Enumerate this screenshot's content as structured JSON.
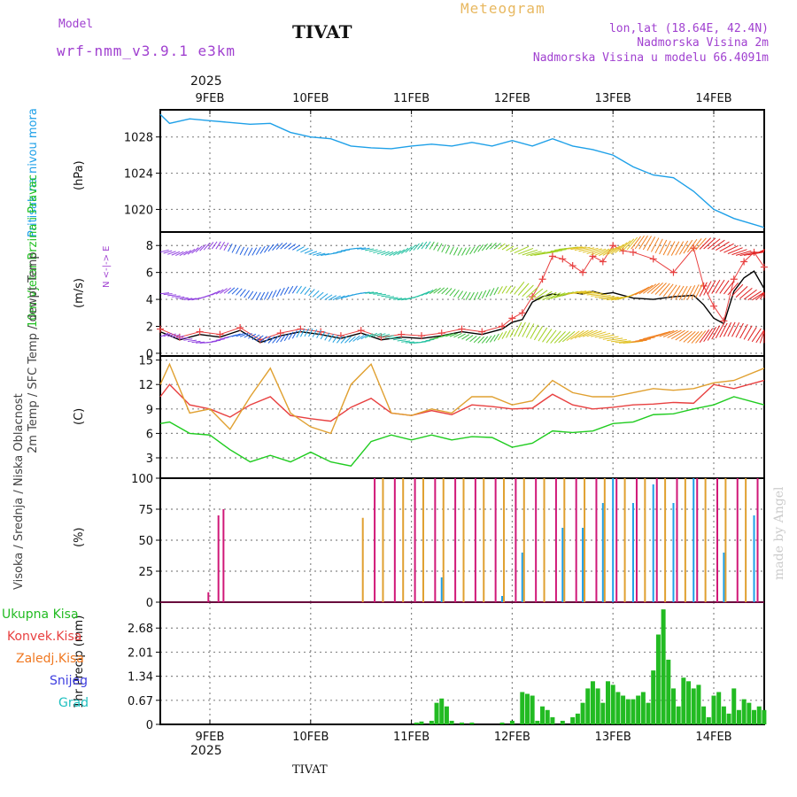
{
  "header": {
    "model_label": "Model",
    "model_name": "wrf-nmm_v3.9.1 e3km",
    "station": "TIVAT",
    "meteogram": "Meteogram",
    "lonlat": "lon,lat (18.64E, 42.4N)",
    "altitude": "Nadmorska Visina 2m",
    "model_altitude": "Nadmorska Visina u modelu 66.4091m",
    "year_top": "2025",
    "year_bottom": "2025",
    "footer_station": "TIVAT",
    "watermark": "made by Angel"
  },
  "colors": {
    "pressure": "#1ea0e8",
    "wind": "#20c020",
    "temp": "#e84040",
    "sfc": "#e0a030",
    "dewpt": "#20cc20",
    "high_cloud": "#1ea0e8",
    "mid_cloud": "#e0a030",
    "low_cloud": "#d01878",
    "precip": "#22bb22",
    "conv": "#e84040",
    "frozen": "#f07820",
    "snow": "#4040e0",
    "hail": "#20c0c0",
    "purple": "#a040d0"
  },
  "axis_ticks": {
    "dates": [
      "9FEB",
      "10FEB",
      "11FEB",
      "12FEB",
      "13FEB",
      "14FEB"
    ]
  },
  "chart_data": [
    {
      "type": "line",
      "title": "Pritisak na nivou mora",
      "ylabel": "(hPa)",
      "yticks": [
        1020,
        1024,
        1028
      ],
      "ylim": [
        1017.5,
        1031
      ],
      "x_days": [
        8.5,
        8.6,
        8.8,
        9.0,
        9.2,
        9.4,
        9.6,
        9.8,
        10.0,
        10.2,
        10.4,
        10.6,
        10.8,
        11.0,
        11.2,
        11.4,
        11.6,
        11.8,
        12.0,
        12.2,
        12.4,
        12.6,
        12.8,
        13.0,
        13.2,
        13.4,
        13.6,
        13.8,
        14.0,
        14.2,
        14.5
      ],
      "values": [
        1030.5,
        1029.5,
        1030.0,
        1029.8,
        1029.6,
        1029.4,
        1029.5,
        1028.5,
        1028.0,
        1027.8,
        1027.0,
        1026.8,
        1026.7,
        1027.0,
        1027.2,
        1027.0,
        1027.4,
        1027.0,
        1027.6,
        1027.0,
        1027.8,
        1027.0,
        1026.6,
        1026.0,
        1024.7,
        1023.8,
        1023.5,
        1022.0,
        1020.0,
        1019.0,
        1018.0
      ]
    },
    {
      "type": "line",
      "title": "10m Vjetar Brzina i Pravac",
      "ylabel": "(m/s)",
      "direction_legend": "N <-|-> E",
      "yticks": [
        0,
        2,
        4,
        6,
        8
      ],
      "ylim": [
        -0.2,
        9
      ],
      "x_days": [
        8.5,
        8.7,
        8.9,
        9.1,
        9.3,
        9.5,
        9.7,
        9.9,
        10.1,
        10.3,
        10.5,
        10.7,
        10.9,
        11.1,
        11.3,
        11.5,
        11.7,
        11.9,
        12.0,
        12.1,
        12.2,
        12.3,
        12.4,
        12.5,
        12.6,
        12.7,
        12.8,
        12.9,
        13.0,
        13.1,
        13.2,
        13.4,
        13.6,
        13.8,
        13.9,
        14.0,
        14.1,
        14.2,
        14.3,
        14.4,
        14.5
      ],
      "speed": [
        1.8,
        1.2,
        1.6,
        1.4,
        1.9,
        1.0,
        1.5,
        1.8,
        1.6,
        1.3,
        1.7,
        1.2,
        1.4,
        1.3,
        1.5,
        1.8,
        1.6,
        2.0,
        2.6,
        3.0,
        4.2,
        5.5,
        7.2,
        7.0,
        6.5,
        6.0,
        7.2,
        6.8,
        8.0,
        7.6,
        7.5,
        7.0,
        6.0,
        7.8,
        5.0,
        3.5,
        2.4,
        5.5,
        6.8,
        7.5,
        6.4
      ],
      "gust": [
        1.6,
        1.0,
        1.4,
        1.2,
        1.7,
        0.8,
        1.3,
        1.6,
        1.4,
        1.1,
        1.5,
        1.0,
        1.2,
        1.1,
        1.3,
        1.6,
        1.4,
        1.8,
        2.3,
        2.5,
        3.8,
        4.2,
        4.4,
        4.3,
        4.5,
        4.4,
        4.6,
        4.4,
        4.5,
        4.3,
        4.1,
        4.0,
        4.2,
        4.3,
        3.6,
        2.6,
        2.2,
        4.6,
        5.6,
        6.1,
        4.8
      ]
    },
    {
      "type": "line",
      "title": "2m Temp / SFC Temp / dewpt Temp",
      "ylabel": "(C)",
      "yticks": [
        3,
        6,
        9,
        12,
        15
      ],
      "ylim": [
        0.5,
        15.5
      ],
      "series": [
        {
          "name": "2m Temp",
          "x_days": [
            8.5,
            8.6,
            8.8,
            9.0,
            9.2,
            9.4,
            9.6,
            9.8,
            10.0,
            10.2,
            10.4,
            10.6,
            10.8,
            11.0,
            11.2,
            11.4,
            11.6,
            11.8,
            12.0,
            12.2,
            12.4,
            12.6,
            12.8,
            13.0,
            13.2,
            13.4,
            13.6,
            13.8,
            14.0,
            14.2,
            14.5
          ],
          "values": [
            10.5,
            12.0,
            9.5,
            9.0,
            8.0,
            9.5,
            10.5,
            8.2,
            7.8,
            7.5,
            9.2,
            10.3,
            8.5,
            8.2,
            8.8,
            8.3,
            9.5,
            9.3,
            9.0,
            9.1,
            10.8,
            9.5,
            9.0,
            9.2,
            9.5,
            9.6,
            9.8,
            9.7,
            12.0,
            11.5,
            12.5
          ]
        },
        {
          "name": "SFC Temp",
          "x_days": [
            8.5,
            8.6,
            8.8,
            9.0,
            9.2,
            9.4,
            9.6,
            9.8,
            10.0,
            10.2,
            10.4,
            10.6,
            10.8,
            11.0,
            11.2,
            11.4,
            11.6,
            11.8,
            12.0,
            12.2,
            12.4,
            12.6,
            12.8,
            13.0,
            13.2,
            13.4,
            13.6,
            13.8,
            14.0,
            14.2,
            14.5
          ],
          "values": [
            12.0,
            14.5,
            8.5,
            9.0,
            6.5,
            10.5,
            14.0,
            8.5,
            6.8,
            6.0,
            12.0,
            14.5,
            8.5,
            8.2,
            9.0,
            8.5,
            10.5,
            10.5,
            9.5,
            10.0,
            12.5,
            11.0,
            10.5,
            10.5,
            11.0,
            11.5,
            11.3,
            11.5,
            12.2,
            12.5,
            14.0
          ]
        },
        {
          "name": "dewpt Temp",
          "x_days": [
            8.5,
            8.6,
            8.8,
            9.0,
            9.2,
            9.4,
            9.6,
            9.8,
            10.0,
            10.2,
            10.4,
            10.6,
            10.8,
            11.0,
            11.2,
            11.4,
            11.6,
            11.8,
            12.0,
            12.2,
            12.4,
            12.6,
            12.8,
            13.0,
            13.2,
            13.4,
            13.6,
            13.8,
            14.0,
            14.2,
            14.5
          ],
          "values": [
            7.2,
            7.4,
            6.0,
            5.8,
            4.0,
            2.5,
            3.3,
            2.5,
            3.7,
            2.5,
            2.0,
            5.0,
            5.8,
            5.2,
            5.8,
            5.2,
            5.6,
            5.5,
            4.3,
            4.8,
            6.3,
            6.1,
            6.3,
            7.2,
            7.4,
            8.3,
            8.4,
            9.0,
            9.5,
            10.5,
            9.5
          ]
        }
      ]
    },
    {
      "type": "bar",
      "title": "Visoka / Srednja / Niska Oblacnost",
      "ylabel": "(%)",
      "yticks": [
        0,
        25,
        50,
        75,
        100
      ],
      "ylim": [
        0,
        100
      ],
      "series": [
        {
          "name": "Visoka Oblacnost",
          "x_days": [
            11.3,
            11.9,
            12.1,
            12.5,
            12.7,
            12.9,
            13.0,
            13.2,
            13.4,
            13.6,
            13.8,
            14.1,
            14.4
          ],
          "values": [
            20,
            5,
            40,
            60,
            60,
            80,
            100,
            80,
            95,
            80,
            100,
            40,
            70
          ]
        },
        {
          "name": "Srednja Oblacnost",
          "x_days": [
            10.5,
            10.7,
            10.9,
            11.1,
            11.3,
            11.5,
            11.7,
            11.9,
            12.1,
            12.3,
            12.5,
            12.7,
            12.9,
            13.1,
            13.3,
            13.5,
            13.7,
            13.9,
            14.1,
            14.3
          ],
          "values": [
            68,
            100,
            100,
            100,
            100,
            100,
            100,
            100,
            100,
            100,
            100,
            100,
            100,
            100,
            100,
            100,
            100,
            100,
            100,
            100
          ]
        },
        {
          "name": "Niska Oblacnost",
          "x_days": [
            8.95,
            9.05,
            9.1,
            10.6,
            10.8,
            11.0,
            11.2,
            11.4,
            11.6,
            11.8,
            12.0,
            12.2,
            12.4,
            12.6,
            12.8,
            13.0,
            13.2,
            13.4,
            13.6,
            13.8,
            14.0,
            14.2,
            14.4
          ],
          "values": [
            8,
            70,
            75,
            100,
            100,
            100,
            100,
            100,
            100,
            100,
            100,
            100,
            100,
            100,
            100,
            100,
            100,
            100,
            100,
            100,
            100,
            100,
            100
          ]
        }
      ]
    },
    {
      "type": "bar",
      "title": "Ukupna Kisa / Konvek.Kisa / Zaledj.Kisa / Snijeg / Grad",
      "ylabel": "1hr Precip (mm)",
      "yticks": [
        0,
        0.67,
        1.34,
        2.01,
        2.68
      ],
      "ylim": [
        0,
        3.4
      ],
      "legend": [
        "Ukupna Kisa",
        "Konvek.Kisa",
        "Zaledj.Kisa",
        "Snijeg",
        "Grad"
      ],
      "x_days": [
        11.05,
        11.1,
        11.2,
        11.25,
        11.3,
        11.35,
        11.4,
        11.5,
        11.6,
        11.9,
        12.0,
        12.1,
        12.15,
        12.2,
        12.25,
        12.3,
        12.35,
        12.4,
        12.5,
        12.6,
        12.65,
        12.7,
        12.75,
        12.8,
        12.85,
        12.9,
        12.95,
        13.0,
        13.05,
        13.1,
        13.15,
        13.2,
        13.25,
        13.3,
        13.35,
        13.4,
        13.45,
        13.5,
        13.55,
        13.6,
        13.65,
        13.7,
        13.75,
        13.8,
        13.85,
        13.9,
        13.95,
        14.0,
        14.05,
        14.1,
        14.15,
        14.2,
        14.25,
        14.3,
        14.35,
        14.4,
        14.45,
        14.5
      ],
      "values": [
        0.05,
        0.08,
        0.1,
        0.6,
        0.72,
        0.5,
        0.1,
        0.05,
        0.05,
        0.05,
        0.1,
        0.9,
        0.85,
        0.8,
        0.1,
        0.5,
        0.4,
        0.2,
        0.1,
        0.2,
        0.3,
        0.6,
        1.0,
        1.2,
        1.0,
        0.6,
        1.2,
        1.1,
        0.9,
        0.8,
        0.7,
        0.7,
        0.8,
        0.9,
        0.6,
        1.5,
        2.5,
        3.2,
        1.8,
        1.0,
        0.5,
        1.3,
        1.2,
        1.0,
        1.1,
        0.5,
        0.2,
        0.8,
        0.9,
        0.5,
        0.3,
        1.0,
        0.4,
        0.7,
        0.6,
        0.4,
        0.5,
        0.4
      ]
    }
  ]
}
